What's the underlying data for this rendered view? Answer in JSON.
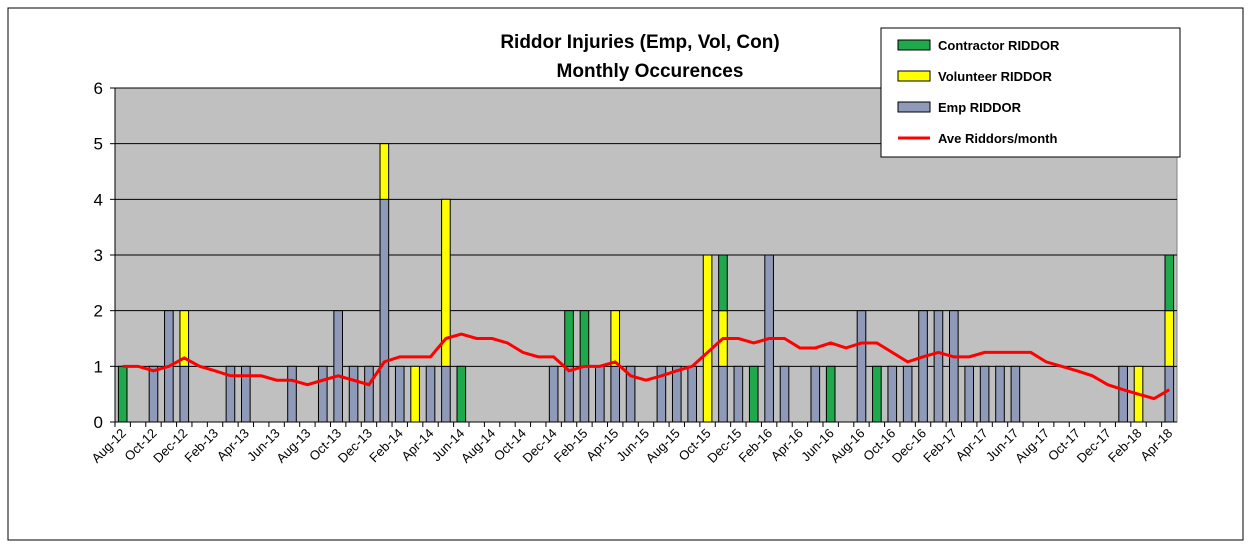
{
  "chart_data": {
    "type": "bar",
    "stacked": true,
    "title": "Riddor Injuries (Emp, Vol, Con)",
    "subtitle": "Monthly Occurences",
    "categories": [
      "Aug-12",
      null,
      "Oct-12",
      null,
      "Dec-12",
      null,
      "Feb-13",
      null,
      "Apr-13",
      null,
      "Jun-13",
      null,
      "Aug-13",
      null,
      "Oct-13",
      null,
      "Dec-13",
      null,
      "Feb-14",
      null,
      "Apr-14",
      null,
      "Jun-14",
      null,
      "Aug-14",
      null,
      "Oct-14",
      null,
      "Dec-14",
      null,
      "Feb-15",
      null,
      "Apr-15",
      null,
      "Jun-15",
      null,
      "Aug-15",
      null,
      "Oct-15",
      null,
      "Dec-15",
      null,
      "Feb-16",
      null,
      "Apr-16",
      null,
      "Jun-16",
      null,
      "Aug-16",
      null,
      "Oct-16",
      null,
      "Dec-16",
      null,
      "Feb-17",
      null,
      "Apr-17",
      null,
      "Jun-17",
      null,
      "Aug-17",
      null,
      "Oct-17",
      null,
      "Dec-17",
      null,
      "Feb-18",
      null,
      "Apr-18"
    ],
    "series": [
      {
        "name": "Emp RIDDOR",
        "color": "#8e9ab8",
        "values": [
          0,
          0,
          1,
          2,
          1,
          0,
          0,
          1,
          1,
          0,
          0,
          1,
          0,
          1,
          2,
          1,
          1,
          4,
          1,
          0,
          1,
          1,
          0,
          0,
          0,
          0,
          0,
          0,
          1,
          1,
          1,
          1,
          1,
          1,
          0,
          1,
          1,
          1,
          0,
          1,
          1,
          0,
          3,
          1,
          0,
          1,
          0,
          0,
          2,
          0,
          1,
          1,
          2,
          2,
          2,
          1,
          1,
          1,
          1,
          0,
          0,
          0,
          0,
          0,
          0,
          1,
          0,
          0,
          1
        ]
      },
      {
        "name": "Volunteer RIDDOR",
        "color": "#ffff00",
        "values": [
          0,
          0,
          0,
          0,
          1,
          0,
          0,
          0,
          0,
          0,
          0,
          0,
          0,
          0,
          0,
          0,
          0,
          1,
          0,
          1,
          0,
          3,
          0,
          0,
          0,
          0,
          0,
          0,
          0,
          0,
          0,
          0,
          1,
          0,
          0,
          0,
          0,
          0,
          3,
          1,
          0,
          0,
          0,
          0,
          0,
          0,
          0,
          0,
          0,
          0,
          0,
          0,
          0,
          0,
          0,
          0,
          0,
          0,
          0,
          0,
          0,
          0,
          0,
          0,
          0,
          0,
          1,
          0,
          1
        ]
      },
      {
        "name": "Contractor RIDDOR",
        "color": "#1fa84c",
        "values": [
          1,
          0,
          0,
          0,
          0,
          0,
          0,
          0,
          0,
          0,
          0,
          0,
          0,
          0,
          0,
          0,
          0,
          0,
          0,
          0,
          0,
          0,
          1,
          0,
          0,
          0,
          0,
          0,
          0,
          1,
          1,
          0,
          0,
          0,
          0,
          0,
          0,
          0,
          0,
          1,
          0,
          1,
          0,
          0,
          0,
          0,
          1,
          0,
          0,
          1,
          0,
          0,
          0,
          0,
          0,
          0,
          0,
          0,
          0,
          0,
          0,
          0,
          0,
          0,
          0,
          0,
          0,
          0,
          1
        ]
      },
      {
        "name": "Ave Riddors/month",
        "color": "#ff0000",
        "type": "line",
        "values": [
          1.0,
          1.0,
          0.92,
          1.0,
          1.15,
          1.0,
          0.92,
          0.83,
          0.83,
          0.83,
          0.75,
          0.75,
          0.67,
          0.75,
          0.83,
          0.75,
          0.67,
          1.08,
          1.17,
          1.17,
          1.17,
          1.5,
          1.58,
          1.5,
          1.5,
          1.42,
          1.25,
          1.17,
          1.17,
          0.92,
          1.0,
          1.0,
          1.08,
          0.83,
          0.75,
          0.83,
          0.92,
          1.0,
          1.25,
          1.5,
          1.5,
          1.42,
          1.5,
          1.5,
          1.33,
          1.33,
          1.42,
          1.33,
          1.42,
          1.42,
          1.25,
          1.08,
          1.17,
          1.25,
          1.17,
          1.17,
          1.25,
          1.25,
          1.25,
          1.25,
          1.08,
          1.0,
          0.92,
          0.83,
          0.67,
          0.58,
          0.5,
          0.42,
          0.58
        ]
      }
    ],
    "ylim": [
      0,
      6
    ],
    "yticks": [
      0,
      1,
      2,
      3,
      4,
      5,
      6
    ],
    "grid": true,
    "legend": "top-right"
  }
}
